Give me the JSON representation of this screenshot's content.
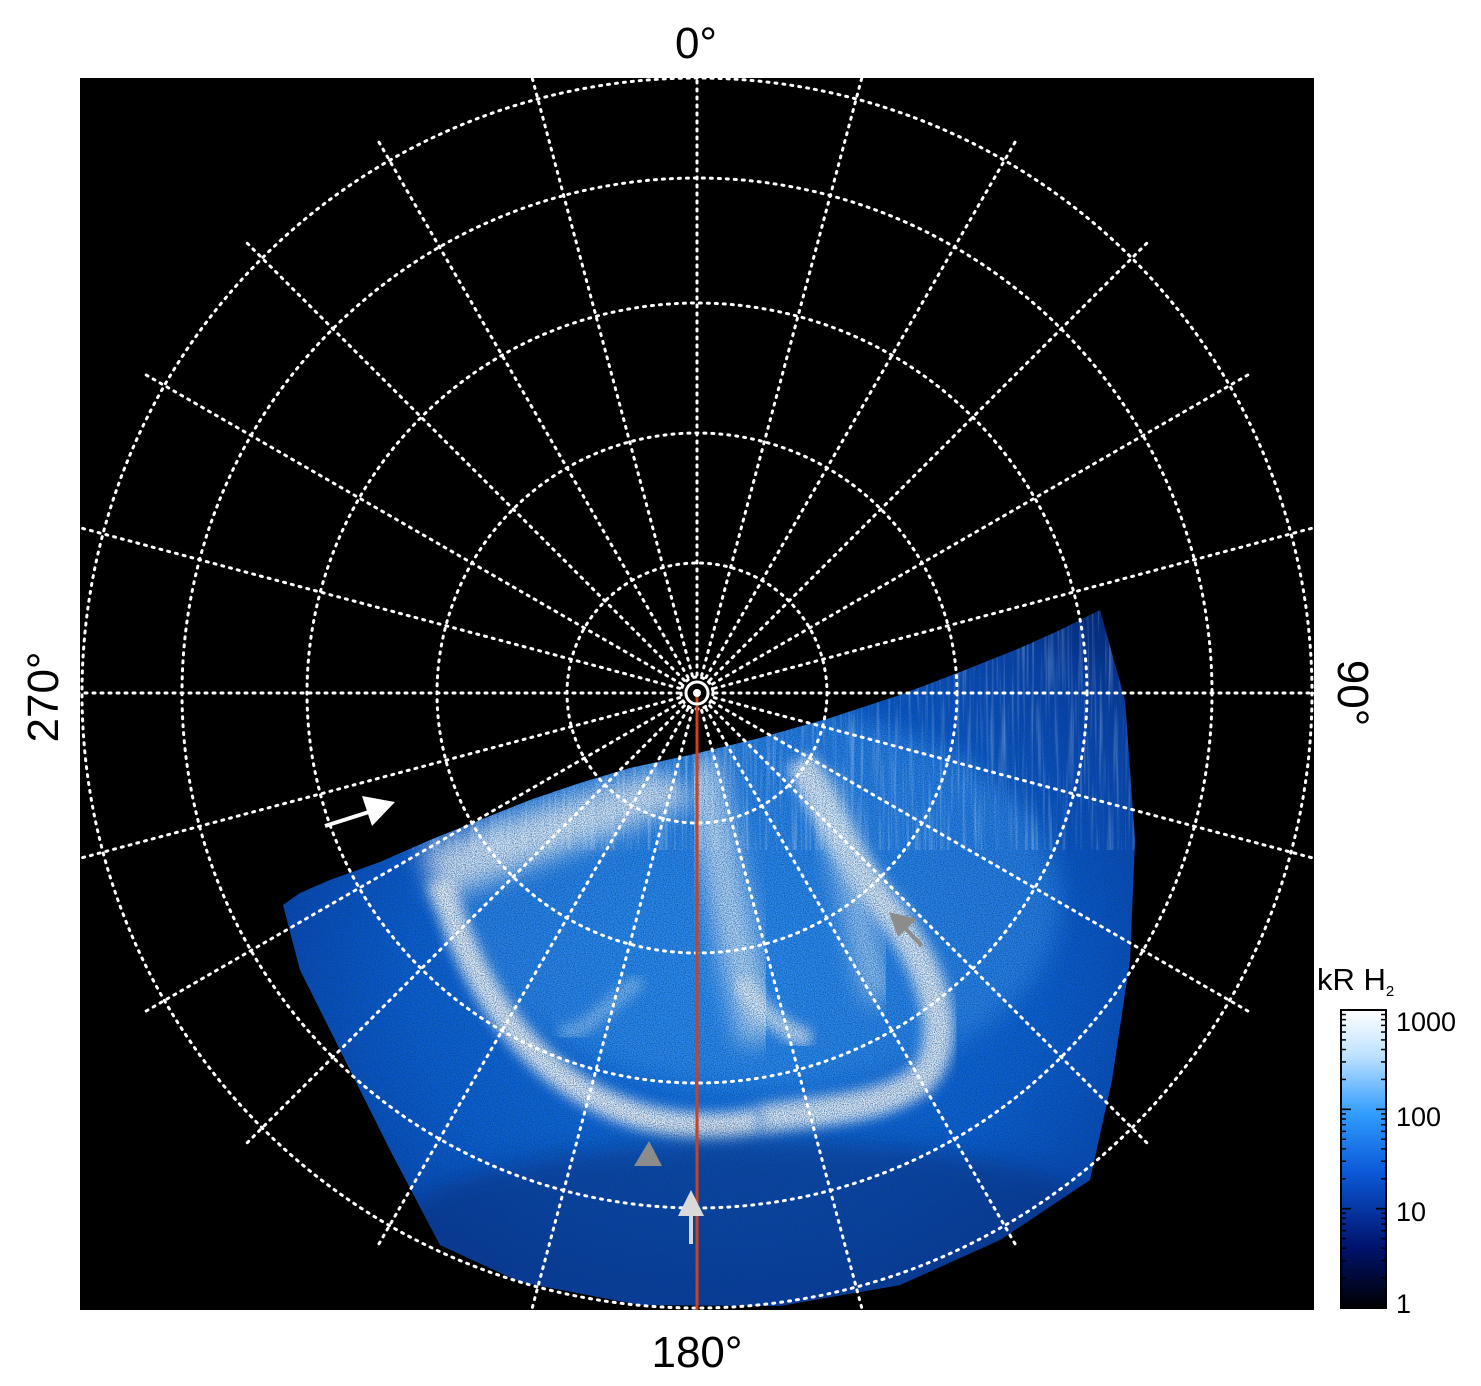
{
  "figure": {
    "longitude_labels": {
      "top": "0°",
      "right": "90°",
      "bottom": "180°",
      "left": "270°"
    },
    "colorbar": {
      "title_main": "kR H",
      "title_sub": "2",
      "scale": "log",
      "range": [
        1,
        1000
      ],
      "ticks": [
        "1000",
        "100",
        "10",
        "1"
      ],
      "colors": [
        "#000000",
        "#00126b",
        "#0b57d6",
        "#2f9cff",
        "#bfe2ff",
        "#ffffff"
      ]
    },
    "colors": {
      "background_frame": "#000000",
      "grid": "#ffffff",
      "meridian_line": "#d1401a",
      "arrow_white": "#ffffff",
      "arrow_gray": "#8c8c8c",
      "arrow_light": "#d9d9d9"
    },
    "annotations": {
      "arrows": [
        {
          "name": "white-arrow-dawn",
          "color": "arrow_white"
        },
        {
          "name": "gray-arrow-right",
          "color": "arrow_gray"
        },
        {
          "name": "gray-arrow-bottom-left",
          "color": "arrow_gray"
        },
        {
          "name": "light-arrow-bottom",
          "color": "arrow_light"
        }
      ]
    }
  }
}
